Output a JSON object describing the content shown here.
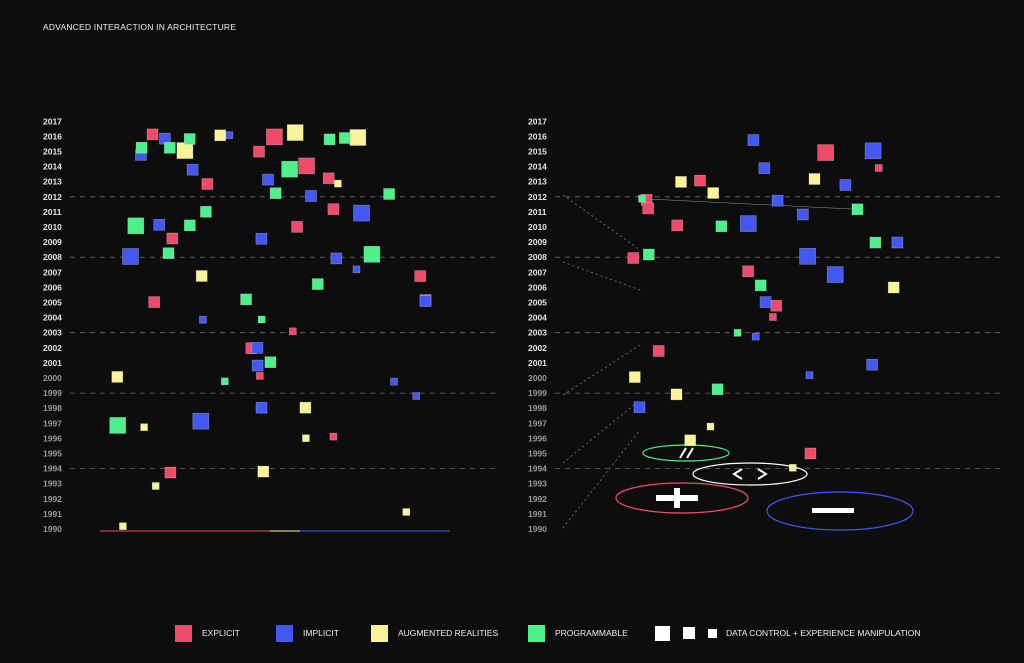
{
  "title": "ADVANCED INTERACTION IN ARCHITECTURE",
  "colors": {
    "explicit": "#f04a6a",
    "implicit": "#4358f0",
    "augmented": "#fbf39a",
    "programmable": "#4df08a",
    "data_control": "#ffffff",
    "background": "#0d0d0d",
    "grid": "#6a6a6a"
  },
  "legend": [
    {
      "key": "explicit",
      "label": "EXPLICIT"
    },
    {
      "key": "implicit",
      "label": "IMPLICIT"
    },
    {
      "key": "augmented",
      "label": "AUGMENTED REALITIES"
    },
    {
      "key": "programmable",
      "label": "PROGRAMMABLE"
    },
    {
      "key": "data_control",
      "label": "DATA CONTROL +  EXPERIENCE MANIPULATION"
    }
  ],
  "chart_data": [
    {
      "type": "scatter",
      "panel": "left",
      "title": "",
      "xlabel": "",
      "ylabel": "",
      "y_ticks": [
        "1990",
        "1991",
        "1992",
        "1993",
        "1994",
        "1995",
        "1996",
        "1997",
        "1998",
        "1999",
        "2000",
        "2001",
        "2002",
        "2003",
        "2004",
        "2005",
        "2006",
        "2007",
        "2008",
        "2009",
        "2010",
        "2011",
        "2012",
        "2013",
        "2014",
        "2015",
        "2016",
        "2017"
      ],
      "ylim": [
        1990,
        2017
      ],
      "grid": "dashed lines at 1994, 1999, 2003, 2008, 2012",
      "series": [
        {
          "name": "EXPLICIT",
          "points": [
            {
              "year": 2016,
              "size": 3
            },
            {
              "year": 2016,
              "size": 2
            },
            {
              "year": 2015,
              "size": 2
            },
            {
              "year": 2015,
              "size": 1
            },
            {
              "year": 2014,
              "size": 3
            },
            {
              "year": 2013,
              "size": 2
            },
            {
              "year": 2013,
              "size": 2
            },
            {
              "year": 2012,
              "size": 1
            },
            {
              "year": 2011,
              "size": 2
            },
            {
              "year": 2010,
              "size": 2
            },
            {
              "year": 2009,
              "size": 2
            },
            {
              "year": 2007,
              "size": 2
            },
            {
              "year": 2005,
              "size": 2
            },
            {
              "year": 2005,
              "size": 2
            },
            {
              "year": 2002,
              "size": 2
            },
            {
              "year": 1996,
              "size": 1
            },
            {
              "year": 1994,
              "size": 2
            },
            {
              "year": 2000,
              "size": 1
            },
            {
              "year": 2003,
              "size": 1
            }
          ]
        },
        {
          "name": "IMPLICIT",
          "points": [
            {
              "year": 2016,
              "size": 2
            },
            {
              "year": 2016,
              "size": 1
            },
            {
              "year": 2015,
              "size": 2
            },
            {
              "year": 2014,
              "size": 2
            },
            {
              "year": 2013,
              "size": 2
            },
            {
              "year": 2012,
              "size": 2
            },
            {
              "year": 2011,
              "size": 3
            },
            {
              "year": 2010,
              "size": 2
            },
            {
              "year": 2009,
              "size": 2
            },
            {
              "year": 2008,
              "size": 3
            },
            {
              "year": 2008,
              "size": 2
            },
            {
              "year": 2005,
              "size": 2
            },
            {
              "year": 2002,
              "size": 2
            },
            {
              "year": 2001,
              "size": 2
            },
            {
              "year": 1998,
              "size": 2
            },
            {
              "year": 1997,
              "size": 3
            },
            {
              "year": 2007,
              "size": 1
            },
            {
              "year": 2004,
              "size": 1
            },
            {
              "year": 2000,
              "size": 1
            },
            {
              "year": 1999,
              "size": 1
            }
          ]
        },
        {
          "name": "AUGMENTED REALITIES",
          "points": [
            {
              "year": 2016,
              "size": 3
            },
            {
              "year": 2016,
              "size": 3
            },
            {
              "year": 2016,
              "size": 2
            },
            {
              "year": 2015,
              "size": 3
            },
            {
              "year": 2013,
              "size": 1
            },
            {
              "year": 2007,
              "size": 2
            },
            {
              "year": 2000,
              "size": 2
            },
            {
              "year": 1998,
              "size": 2
            },
            {
              "year": 1997,
              "size": 1
            },
            {
              "year": 1994,
              "size": 2
            },
            {
              "year": 1996,
              "size": 1
            },
            {
              "year": 1993,
              "size": 1
            },
            {
              "year": 1991,
              "size": 1
            },
            {
              "year": 1990,
              "size": 1
            }
          ]
        },
        {
          "name": "PROGRAMMABLE",
          "points": [
            {
              "year": 2016,
              "size": 2
            },
            {
              "year": 2016,
              "size": 2
            },
            {
              "year": 2016,
              "size": 2
            },
            {
              "year": 2015,
              "size": 2
            },
            {
              "year": 2015,
              "size": 2
            },
            {
              "year": 2014,
              "size": 3
            },
            {
              "year": 2012,
              "size": 2
            },
            {
              "year": 2012,
              "size": 2
            },
            {
              "year": 2011,
              "size": 2
            },
            {
              "year": 2010,
              "size": 3
            },
            {
              "year": 2010,
              "size": 2
            },
            {
              "year": 2008,
              "size": 3
            },
            {
              "year": 2008,
              "size": 2
            },
            {
              "year": 2006,
              "size": 2
            },
            {
              "year": 2005,
              "size": 2
            },
            {
              "year": 2001,
              "size": 2
            },
            {
              "year": 1997,
              "size": 3
            },
            {
              "year": 2004,
              "size": 1
            },
            {
              "year": 2000,
              "size": 1
            }
          ]
        }
      ]
    },
    {
      "type": "scatter",
      "panel": "right",
      "title": "",
      "xlabel": "",
      "ylabel": "",
      "y_ticks": [
        "1990",
        "1991",
        "1992",
        "1993",
        "1994",
        "1995",
        "1996",
        "1997",
        "1998",
        "1999",
        "2000",
        "2001",
        "2002",
        "2003",
        "2004",
        "2005",
        "2006",
        "2007",
        "2008",
        "2009",
        "2010",
        "2011",
        "2012",
        "2013",
        "2014",
        "2015",
        "2016",
        "2017"
      ],
      "ylim": [
        1990,
        2017
      ],
      "grid": "dashed lines at 1994, 1999, 2003, 2008, 2012",
      "annotations": [
        "explicit cluster ring with plus symbol",
        "implicit cluster ring with minus symbol",
        "augmented cluster ring with angle brackets",
        "programmable cluster ring with slashes"
      ],
      "series": [
        {
          "name": "EXPLICIT",
          "points": [
            {
              "year": 2015,
              "size": 3
            },
            {
              "year": 2013,
              "size": 2
            },
            {
              "year": 2012,
              "size": 2
            },
            {
              "year": 2011,
              "size": 2
            },
            {
              "year": 2010,
              "size": 2
            },
            {
              "year": 2008,
              "size": 2
            },
            {
              "year": 2007,
              "size": 2
            },
            {
              "year": 2005,
              "size": 2
            },
            {
              "year": 2004,
              "size": 1
            },
            {
              "year": 2002,
              "size": 2
            },
            {
              "year": 1995,
              "size": 2
            },
            {
              "year": 2014,
              "size": 1
            }
          ]
        },
        {
          "name": "IMPLICIT",
          "points": [
            {
              "year": 2016,
              "size": 2
            },
            {
              "year": 2015,
              "size": 3
            },
            {
              "year": 2014,
              "size": 2
            },
            {
              "year": 2013,
              "size": 2
            },
            {
              "year": 2012,
              "size": 2
            },
            {
              "year": 2011,
              "size": 2
            },
            {
              "year": 2010,
              "size": 3
            },
            {
              "year": 2009,
              "size": 2
            },
            {
              "year": 2008,
              "size": 3
            },
            {
              "year": 2007,
              "size": 3
            },
            {
              "year": 2005,
              "size": 2
            },
            {
              "year": 2001,
              "size": 2
            },
            {
              "year": 1998,
              "size": 2
            },
            {
              "year": 2003,
              "size": 1
            },
            {
              "year": 2000,
              "size": 1
            }
          ]
        },
        {
          "name": "AUGMENTED REALITIES",
          "points": [
            {
              "year": 2013,
              "size": 2
            },
            {
              "year": 2013,
              "size": 2
            },
            {
              "year": 2012,
              "size": 2
            },
            {
              "year": 2006,
              "size": 2
            },
            {
              "year": 2000,
              "size": 2
            },
            {
              "year": 1999,
              "size": 2
            },
            {
              "year": 1996,
              "size": 2
            },
            {
              "year": 1997,
              "size": 1
            },
            {
              "year": 1994,
              "size": 1
            }
          ]
        },
        {
          "name": "PROGRAMMABLE",
          "points": [
            {
              "year": 2011,
              "size": 2
            },
            {
              "year": 2010,
              "size": 2
            },
            {
              "year": 2009,
              "size": 2
            },
            {
              "year": 2008,
              "size": 2
            },
            {
              "year": 2006,
              "size": 2
            },
            {
              "year": 2003,
              "size": 1
            },
            {
              "year": 1999,
              "size": 2
            },
            {
              "year": 2012,
              "size": 1
            }
          ]
        }
      ]
    }
  ]
}
